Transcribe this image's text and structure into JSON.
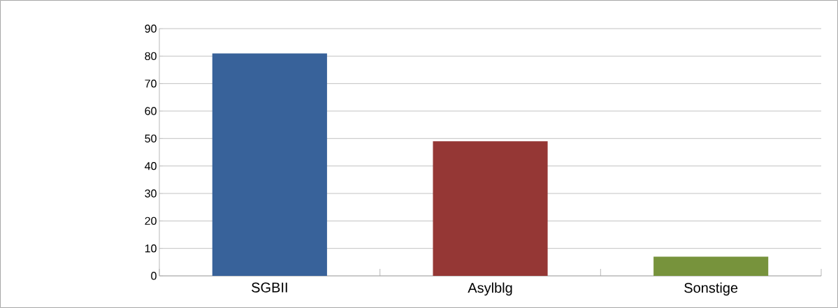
{
  "chart_data": {
    "type": "bar",
    "categories": [
      "SGBII",
      "Asylblg",
      "Sonstige"
    ],
    "values": [
      81,
      49,
      7
    ],
    "colors": [
      "#38629a",
      "#953735",
      "#77933c"
    ],
    "ylim": [
      0,
      90
    ],
    "yticks": [
      0,
      10,
      20,
      30,
      40,
      50,
      60,
      70,
      80,
      90
    ],
    "grid": "y"
  }
}
